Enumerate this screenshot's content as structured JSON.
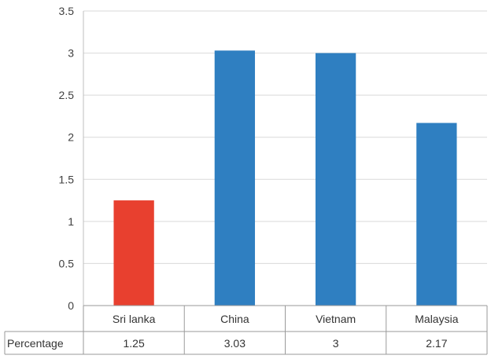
{
  "chart_data": {
    "type": "bar",
    "categories": [
      "Sri lanka",
      "China",
      "Vietnam",
      "Malaysia"
    ],
    "series": [
      {
        "name": "Percentage",
        "values": [
          1.25,
          3.03,
          3,
          2.17
        ]
      }
    ],
    "value_labels": [
      "1.25",
      "3.03",
      "3",
      "2.17"
    ],
    "yticks": [
      "0",
      "0.5",
      "1",
      "1.5",
      "2",
      "2.5",
      "3",
      "3.5"
    ],
    "ylim": [
      0,
      3.5
    ],
    "grid": true,
    "has_data_table": true,
    "colors": {
      "highlight": "#e8402f",
      "default": "#2f7fc1",
      "grid": "#d9d9d9"
    },
    "highlight_index": 0
  }
}
